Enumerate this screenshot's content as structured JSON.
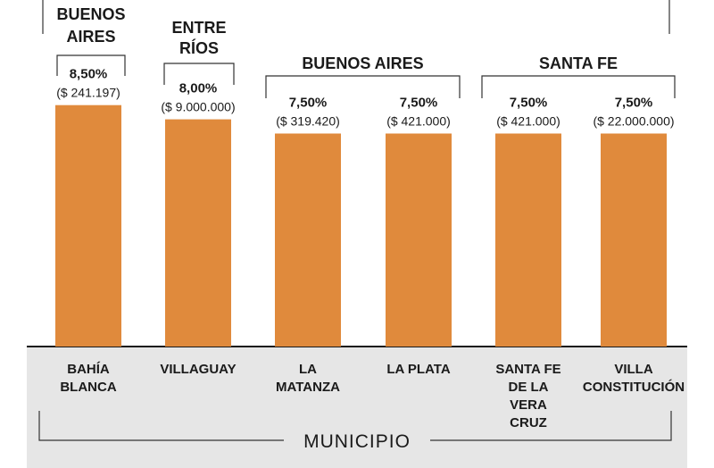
{
  "chart_data": {
    "type": "bar",
    "categories": [
      [
        "BAHÍA",
        "BLANCA"
      ],
      [
        "VILLAGUAY"
      ],
      [
        "LA",
        "MATANZA"
      ],
      [
        "LA PLATA"
      ],
      [
        "SANTA FE",
        "DE LA",
        "VERA",
        "CRUZ"
      ],
      [
        "VILLA",
        "CONSTITUCIÓN"
      ]
    ],
    "values": [
      8.5,
      8.0,
      7.5,
      7.5,
      7.5,
      7.5
    ],
    "value_labels": [
      "8,50%",
      "8,00%",
      "7,50%",
      "7,50%",
      "7,50%",
      "7,50%"
    ],
    "amount_labels": [
      "($ 241.197)",
      "($ 9.000.000)",
      "($ 319.420)",
      "($ 421.000)",
      "($ 421.000)",
      "($ 22.000.000)"
    ],
    "province_groups": [
      {
        "label": [
          "BUENOS",
          "AIRES"
        ],
        "bars": [
          0
        ]
      },
      {
        "label": [
          "ENTRE",
          "RÍOS"
        ],
        "bars": [
          1
        ]
      },
      {
        "label": [
          "BUENOS AIRES"
        ],
        "bars": [
          2,
          3
        ]
      },
      {
        "label": [
          "SANTA FE"
        ],
        "bars": [
          4,
          5
        ]
      }
    ],
    "xlabel": "MUNICIPIO",
    "ylim": [
      0,
      10
    ],
    "grid": false,
    "colors": {
      "bar": "#E08A3C",
      "axis_band": "#E6E6E6",
      "text": "#1A1A1A",
      "bracket": "#333333"
    }
  }
}
